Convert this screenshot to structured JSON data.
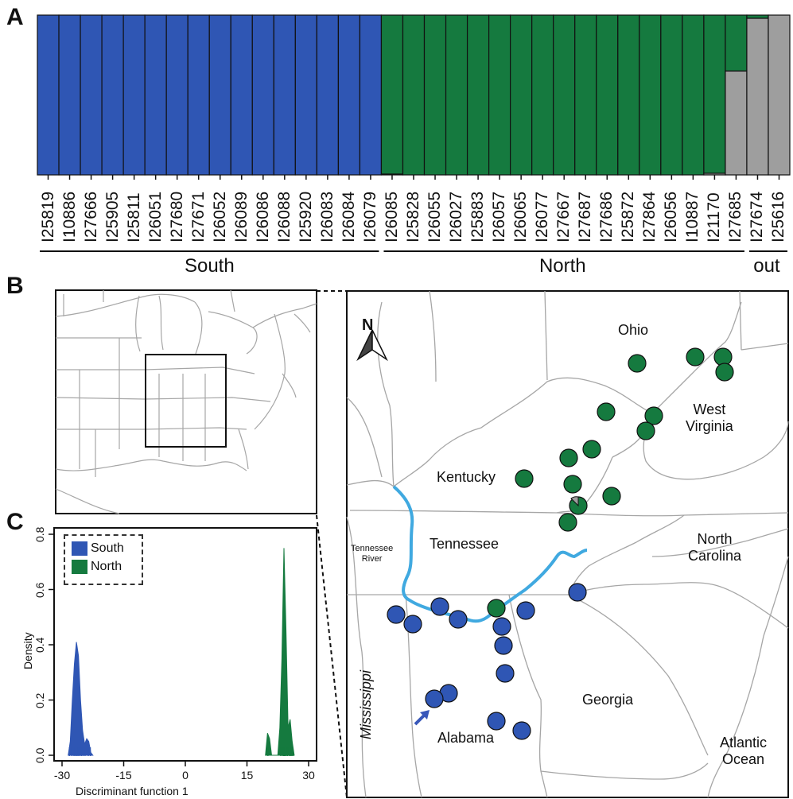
{
  "panels": {
    "a": "A",
    "b": "B",
    "c": "C"
  },
  "colors": {
    "south": "#2f56b4",
    "north": "#157a3f",
    "out": "#9e9e9e",
    "river": "#40a9e0",
    "border": "#a6a6a6",
    "arrow": "#3857b9"
  },
  "structure": {
    "samples": [
      {
        "id": "I25819",
        "q": {
          "south": 1.0,
          "north": 0.0,
          "out": 0.0
        }
      },
      {
        "id": "I10886",
        "q": {
          "south": 1.0,
          "north": 0.0,
          "out": 0.0
        }
      },
      {
        "id": "I27666",
        "q": {
          "south": 1.0,
          "north": 0.0,
          "out": 0.0
        }
      },
      {
        "id": "I25905",
        "q": {
          "south": 1.0,
          "north": 0.0,
          "out": 0.0
        }
      },
      {
        "id": "I25811",
        "q": {
          "south": 1.0,
          "north": 0.0,
          "out": 0.0
        }
      },
      {
        "id": "I26051",
        "q": {
          "south": 1.0,
          "north": 0.0,
          "out": 0.0
        }
      },
      {
        "id": "I27680",
        "q": {
          "south": 1.0,
          "north": 0.0,
          "out": 0.0
        }
      },
      {
        "id": "I27671",
        "q": {
          "south": 1.0,
          "north": 0.0,
          "out": 0.0
        }
      },
      {
        "id": "I26052",
        "q": {
          "south": 1.0,
          "north": 0.0,
          "out": 0.0
        }
      },
      {
        "id": "I26089",
        "q": {
          "south": 1.0,
          "north": 0.0,
          "out": 0.0
        }
      },
      {
        "id": "I26086",
        "q": {
          "south": 1.0,
          "north": 0.0,
          "out": 0.0
        }
      },
      {
        "id": "I26088",
        "q": {
          "south": 1.0,
          "north": 0.0,
          "out": 0.0
        }
      },
      {
        "id": "I25920",
        "q": {
          "south": 1.0,
          "north": 0.0,
          "out": 0.0
        }
      },
      {
        "id": "I26083",
        "q": {
          "south": 1.0,
          "north": 0.0,
          "out": 0.0
        }
      },
      {
        "id": "I26084",
        "q": {
          "south": 1.0,
          "north": 0.0,
          "out": 0.0
        }
      },
      {
        "id": "I26079",
        "q": {
          "south": 1.0,
          "north": 0.0,
          "out": 0.0
        }
      },
      {
        "id": "I26085",
        "q": {
          "south": 0.0,
          "north": 0.995,
          "out": 0.005
        }
      },
      {
        "id": "I25828",
        "q": {
          "south": 0.0,
          "north": 1.0,
          "out": 0.0
        }
      },
      {
        "id": "I26055",
        "q": {
          "south": 0.0,
          "north": 1.0,
          "out": 0.0
        }
      },
      {
        "id": "I26027",
        "q": {
          "south": 0.0,
          "north": 1.0,
          "out": 0.0
        }
      },
      {
        "id": "I25883",
        "q": {
          "south": 0.0,
          "north": 1.0,
          "out": 0.0
        }
      },
      {
        "id": "I26057",
        "q": {
          "south": 0.0,
          "north": 1.0,
          "out": 0.0
        }
      },
      {
        "id": "I26065",
        "q": {
          "south": 0.0,
          "north": 1.0,
          "out": 0.0
        }
      },
      {
        "id": "I26077",
        "q": {
          "south": 0.0,
          "north": 1.0,
          "out": 0.0
        }
      },
      {
        "id": "I27667",
        "q": {
          "south": 0.0,
          "north": 1.0,
          "out": 0.0
        }
      },
      {
        "id": "I27687",
        "q": {
          "south": 0.0,
          "north": 1.0,
          "out": 0.0
        }
      },
      {
        "id": "I27686",
        "q": {
          "south": 0.0,
          "north": 1.0,
          "out": 0.0
        }
      },
      {
        "id": "I25872",
        "q": {
          "south": 0.0,
          "north": 1.0,
          "out": 0.0
        }
      },
      {
        "id": "I27864",
        "q": {
          "south": 0.0,
          "north": 1.0,
          "out": 0.0
        }
      },
      {
        "id": "I26056",
        "q": {
          "south": 0.0,
          "north": 1.0,
          "out": 0.0
        }
      },
      {
        "id": "I10887",
        "q": {
          "south": 0.0,
          "north": 1.0,
          "out": 0.0
        }
      },
      {
        "id": "I21170",
        "q": {
          "south": 0.0,
          "north": 0.99,
          "out": 0.01
        }
      },
      {
        "id": "I27685",
        "q": {
          "south": 0.0,
          "north": 0.35,
          "out": 0.65
        }
      },
      {
        "id": "I27674",
        "q": {
          "south": 0.0,
          "north": 0.02,
          "out": 0.98
        }
      },
      {
        "id": "I25616",
        "q": {
          "south": 0.0,
          "north": 0.0,
          "out": 1.0
        }
      }
    ],
    "groups": [
      {
        "label": "South",
        "count": 16
      },
      {
        "label": "North",
        "count": 17
      },
      {
        "label": "out",
        "count": 2
      }
    ]
  },
  "map": {
    "north_arrow": "N",
    "labels": {
      "ohio": "Ohio",
      "west_virginia": "West\nVirginia",
      "kentucky": "Kentucky",
      "tennessee": "Tennessee",
      "tennessee_river": "Tennessee\nRiver",
      "north_carolina": "North\nCarolina",
      "mississippi": "Mississippi",
      "georgia": "Georgia",
      "alabama": "Alabama",
      "atlantic": "Atlantic\nOcean"
    }
  },
  "chart_data": {
    "type": "area",
    "xlabel": "Discriminant function 1",
    "ylabel": "Density",
    "xlim": [
      -30,
      30
    ],
    "ylim": [
      0,
      0.8
    ],
    "xticks": [
      -30,
      -15,
      0,
      15,
      30
    ],
    "yticks": [
      0.0,
      0.2,
      0.4,
      0.6,
      0.8
    ],
    "legend": {
      "position": "top-left",
      "entries": [
        "South",
        "North"
      ]
    },
    "series": [
      {
        "name": "South",
        "x": [
          -28.5,
          -28,
          -27.5,
          -27,
          -26.5,
          -26,
          -25.5,
          -25,
          -24.5,
          -24,
          -23.5,
          -23,
          -22.5
        ],
        "density": [
          0.0,
          0.05,
          0.2,
          0.33,
          0.41,
          0.36,
          0.2,
          0.09,
          0.04,
          0.06,
          0.05,
          0.01,
          0.0
        ],
        "rug": [
          -28.2,
          -27.6,
          -27.1,
          -26.8,
          -26.4,
          -26.1,
          -25.7,
          -25.3,
          -24.9,
          -24.4,
          -23.6,
          -23.1
        ]
      },
      {
        "name": "North",
        "x": [
          19.5,
          20,
          20.5,
          21,
          21.5,
          22,
          22.5,
          23,
          23.5,
          24,
          24.5,
          25,
          25.5,
          26,
          26.5
        ],
        "density": [
          0.0,
          0.08,
          0.06,
          0.0,
          0.0,
          0.0,
          0.0,
          0.1,
          0.35,
          0.75,
          0.45,
          0.1,
          0.13,
          0.05,
          0.0
        ],
        "rug": [
          20.1,
          23.2,
          23.6,
          23.9,
          24.1,
          24.3,
          24.6,
          24.9,
          25.3,
          25.6,
          25.9,
          26.2
        ]
      }
    ]
  }
}
